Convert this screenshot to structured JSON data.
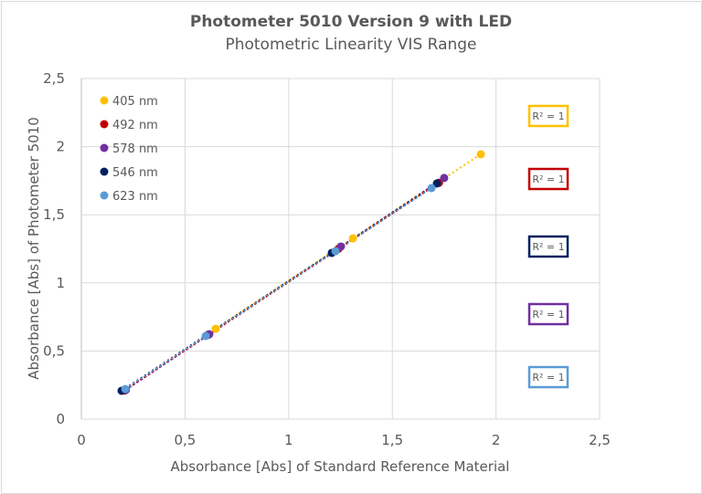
{
  "chart_data": {
    "type": "scatter",
    "title": "Photometer 5010 Version 9 with LED",
    "subtitle": "Photometric Linearity VIS Range",
    "xlabel": "Absorbance [Abs] of Standard Reference Material",
    "ylabel": "Absorbance [Abs] of Photometer 5010",
    "xlim": [
      0,
      2.5
    ],
    "ylim": [
      0,
      2.5
    ],
    "xticks": [
      "0",
      "0,5",
      "1",
      "1,5",
      "2",
      "2,5"
    ],
    "yticks": [
      "0",
      "0,5",
      "1",
      "1,5",
      "2",
      "2,5"
    ],
    "grid": true,
    "legend_position": "top-left",
    "series": [
      {
        "name": "405 nm",
        "color": "#FFC000",
        "r2": "R² = 1",
        "x": [
          0.648,
          1.31,
          1.927
        ],
        "y": [
          0.663,
          1.327,
          1.944
        ]
      },
      {
        "name": "492 nm",
        "color": "#C00000",
        "r2": "R² = 1",
        "x": [
          0.21,
          0.61,
          1.24,
          1.725
        ],
        "y": [
          0.21,
          0.618,
          1.25,
          1.735
        ]
      },
      {
        "name": "578 nm",
        "color": "#7030A0",
        "r2": "R² = 1",
        "x": [
          0.215,
          0.617,
          1.252,
          1.75
        ],
        "y": [
          0.215,
          0.623,
          1.267,
          1.77
        ]
      },
      {
        "name": "546 nm",
        "color": "#002060",
        "r2": "R² = 1",
        "x": [
          0.194,
          1.208,
          1.715
        ],
        "y": [
          0.208,
          1.22,
          1.73
        ]
      },
      {
        "name": "623 nm",
        "color": "#5B9BD5",
        "r2": "R² = 1",
        "x": [
          0.212,
          0.6,
          1.226,
          1.689
        ],
        "y": [
          0.221,
          0.61,
          1.233,
          1.696
        ]
      }
    ],
    "r2_box_order": [
      "405 nm",
      "492 nm",
      "546 nm",
      "578 nm",
      "623 nm"
    ]
  }
}
